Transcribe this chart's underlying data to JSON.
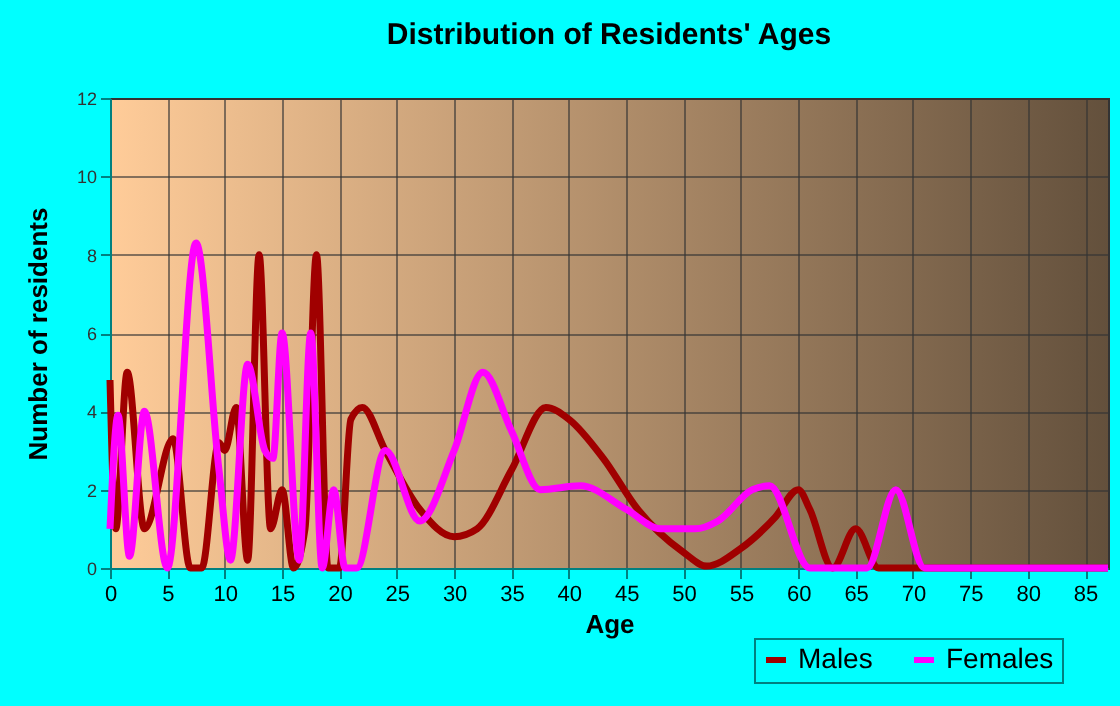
{
  "chart_data": {
    "type": "line",
    "title": "Distribution of Residents' Ages",
    "xlabel": "Age",
    "ylabel": "Number of residents",
    "xlim": [
      0,
      87
    ],
    "xticks": [
      0,
      5,
      10,
      15,
      20,
      25,
      30,
      35,
      40,
      45,
      50,
      55,
      60,
      65,
      70,
      75,
      80,
      85
    ],
    "ylim": [
      0,
      12
    ],
    "yticks": [
      0,
      2,
      4,
      6,
      8,
      10,
      12
    ],
    "grid": true,
    "legend": "bottom right",
    "series": [
      {
        "name": "Males",
        "color": "#a00000",
        "x": [
          0,
          0.5,
          1.5,
          3,
          5.5,
          7,
          8,
          9.5,
          10,
          11,
          12,
          13,
          14,
          15,
          16,
          17,
          18,
          19,
          20,
          21,
          22,
          24,
          27,
          30,
          32,
          35,
          38,
          40,
          43,
          46,
          50,
          52,
          55,
          58,
          60,
          61,
          63,
          65,
          67,
          70,
          87
        ],
        "values": [
          4.8,
          1,
          5,
          1,
          3.3,
          0,
          0,
          3.2,
          3,
          4.1,
          0.2,
          8,
          1,
          2,
          0,
          1,
          8,
          0,
          0,
          3.8,
          4.1,
          3,
          1.5,
          0.8,
          1,
          2.5,
          4.1,
          3.8,
          2.8,
          1.5,
          0.4,
          0.05,
          0.5,
          1.3,
          2,
          1.5,
          0,
          1,
          0,
          0,
          0
        ]
      },
      {
        "name": "Females",
        "color": "#ff00ff",
        "x": [
          0,
          0.7,
          1.7,
          3,
          5,
          7.5,
          9.5,
          10.5,
          12,
          13.5,
          14.2,
          15,
          16.5,
          17.5,
          18.5,
          19.5,
          20.5,
          21.5,
          24,
          27,
          30,
          32.5,
          35,
          37.5,
          41,
          45,
          48,
          51,
          53,
          56,
          57.5,
          61,
          66,
          68.5,
          71,
          87
        ],
        "values": [
          1,
          3.9,
          0.3,
          4,
          0,
          8.3,
          2.5,
          0.2,
          5.2,
          3,
          2.8,
          6,
          0.2,
          6,
          0,
          2,
          0,
          0,
          3,
          1.2,
          3,
          5,
          3.5,
          2,
          2.1,
          1.5,
          1,
          1,
          1.2,
          2,
          2.1,
          0,
          0,
          2,
          0,
          0
        ]
      }
    ]
  }
}
